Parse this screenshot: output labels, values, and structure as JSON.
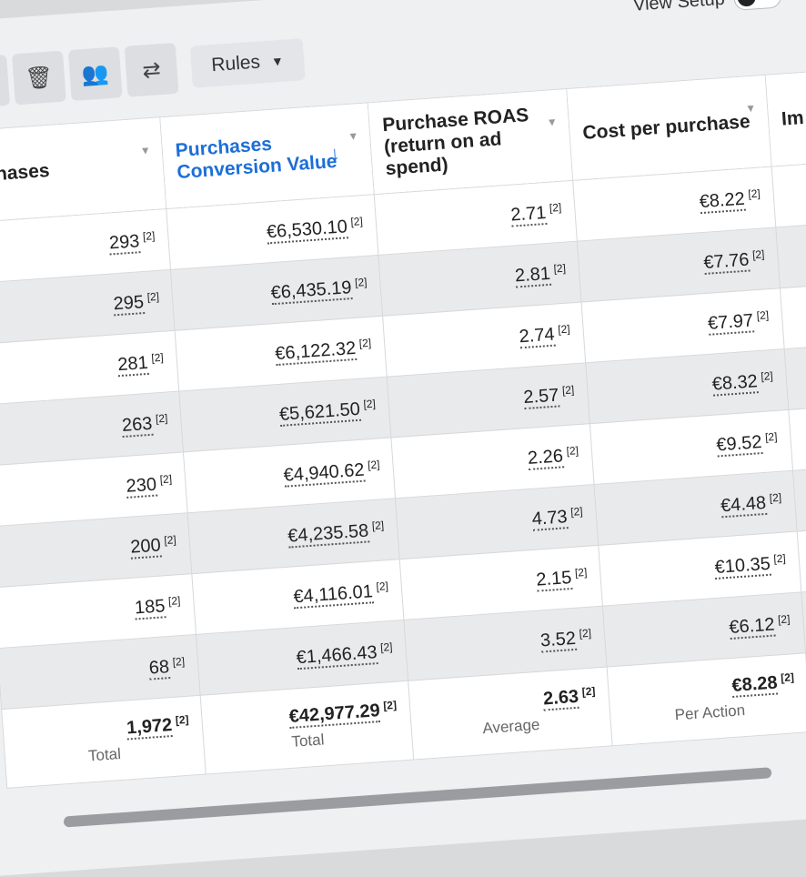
{
  "toolbar": {
    "rules_label": "Rules",
    "view_setup_label": "View Setup",
    "view_setup_on": true
  },
  "columns": [
    "rchases",
    "Purchases Conversion Value",
    "Purchase ROAS (return on ad spend)",
    "Cost per purchase",
    "Im"
  ],
  "footnote": "[2]",
  "rows": [
    {
      "purchases": "293",
      "value": "€6,530.10",
      "roas": "2.71",
      "cpp": "€8.22"
    },
    {
      "purchases": "295",
      "value": "€6,435.19",
      "roas": "2.81",
      "cpp": "€7.76"
    },
    {
      "purchases": "281",
      "value": "€6,122.32",
      "roas": "2.74",
      "cpp": "€7.97"
    },
    {
      "purchases": "263",
      "value": "€5,621.50",
      "roas": "2.57",
      "cpp": "€8.32"
    },
    {
      "purchases": "230",
      "value": "€4,940.62",
      "roas": "2.26",
      "cpp": "€9.52"
    },
    {
      "purchases": "200",
      "value": "€4,235.58",
      "roas": "4.73",
      "cpp": "€4.48"
    },
    {
      "purchases": "185",
      "value": "€4,116.01",
      "roas": "2.15",
      "cpp": "€10.35"
    },
    {
      "purchases": "68",
      "value": "€1,466.43",
      "roas": "3.52",
      "cpp": "€6.12"
    }
  ],
  "totals": {
    "purchases": "1,972",
    "purchases_label": "Total",
    "value": "€42,977.29",
    "value_label": "Total",
    "roas": "2.63",
    "roas_label": "Average",
    "cpp": "€8.28",
    "cpp_label": "Per Action"
  }
}
